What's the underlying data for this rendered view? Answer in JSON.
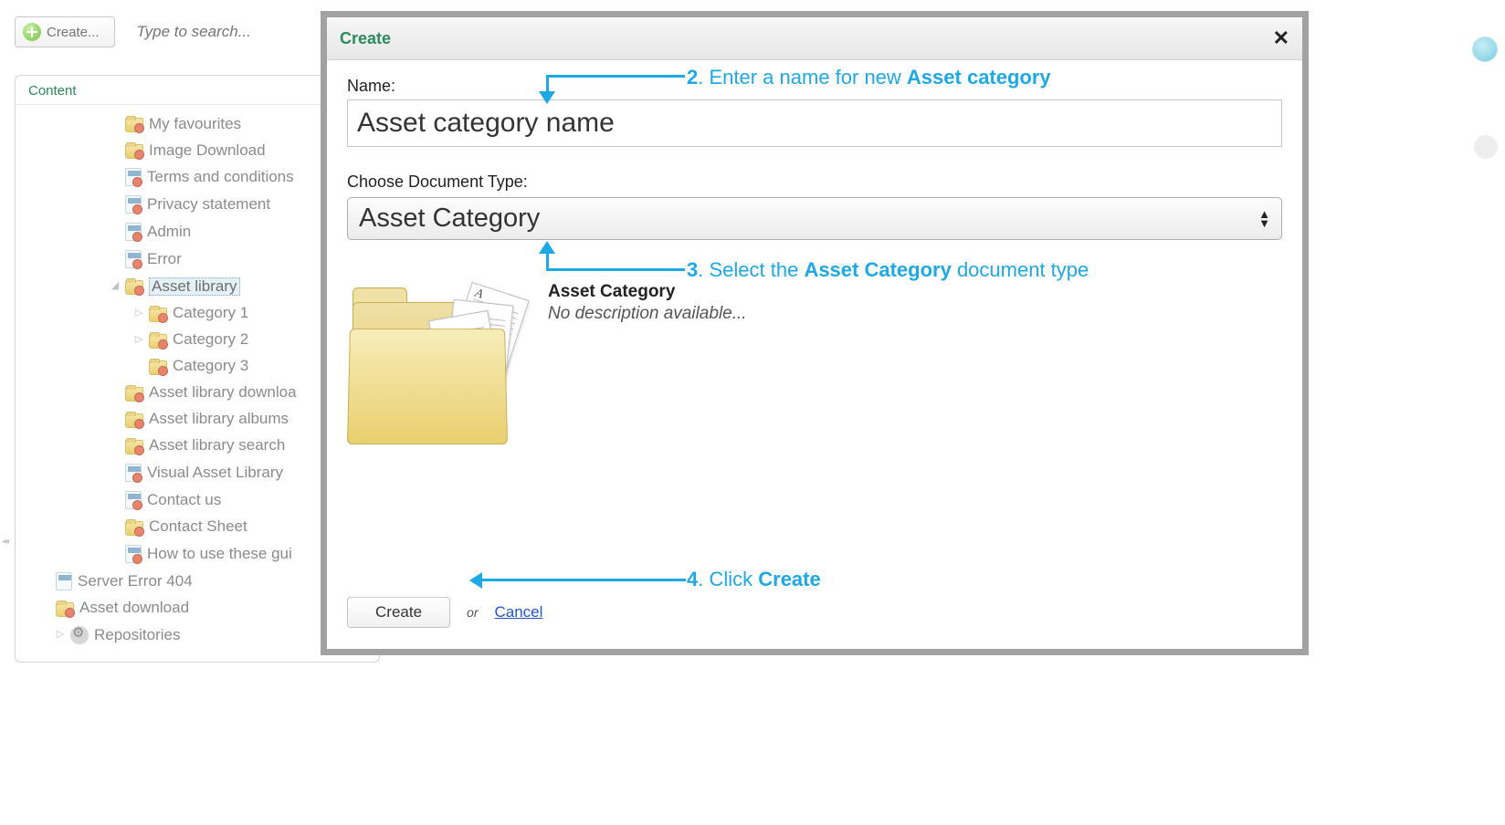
{
  "colors": {
    "accent_green": "#2c8a5d",
    "annotation_blue": "#1ea8e6",
    "link_blue": "#2457c5",
    "modal_border": "#a2a2a2",
    "tree_text": "#8b8b8b"
  },
  "toolbar": {
    "create_label": "Create...",
    "search_placeholder": "Type to search..."
  },
  "sidebar": {
    "tab_label": "Content",
    "items": [
      {
        "label": "My favourites",
        "icon": "folder",
        "depth": 1
      },
      {
        "label": "Image Download",
        "icon": "folder",
        "depth": 1
      },
      {
        "label": "Terms and conditions",
        "icon": "doc",
        "depth": 1
      },
      {
        "label": "Privacy statement",
        "icon": "doc",
        "depth": 1
      },
      {
        "label": "Admin",
        "icon": "doc",
        "depth": 1
      },
      {
        "label": "Error",
        "icon": "doc",
        "depth": 1
      },
      {
        "label": "Asset library",
        "icon": "folder",
        "depth": 1,
        "expander": "◢",
        "selected": true
      },
      {
        "label": "Category 1",
        "icon": "folder",
        "depth": 2,
        "expander": "▷"
      },
      {
        "label": "Category 2",
        "icon": "folder",
        "depth": 2,
        "expander": "▷"
      },
      {
        "label": "Category 3",
        "icon": "folder",
        "depth": 2
      },
      {
        "label": "Asset library downloa",
        "icon": "folder",
        "depth": 1
      },
      {
        "label": "Asset library albums",
        "icon": "folder",
        "depth": 1
      },
      {
        "label": "Asset library search",
        "icon": "folder",
        "depth": 1
      },
      {
        "label": "Visual Asset Library",
        "icon": "doc",
        "depth": 1
      },
      {
        "label": "Contact us",
        "icon": "doc",
        "depth": 1
      },
      {
        "label": "Contact Sheet",
        "icon": "folder",
        "depth": 1
      },
      {
        "label": "How to use these gui",
        "icon": "doc",
        "depth": 1
      },
      {
        "label": "Server Error 404",
        "icon": "doc-noerr",
        "depth": 0
      },
      {
        "label": "Asset download",
        "icon": "folder",
        "depth": 0
      },
      {
        "label": "Repositories",
        "icon": "gear",
        "depth": 0,
        "expander": "▷"
      }
    ]
  },
  "dialog": {
    "title": "Create",
    "name_label": "Name:",
    "name_value": "Asset category name",
    "doctype_label": "Choose Document Type:",
    "doctype_value": "Asset Category",
    "preview_title": "Asset Category",
    "preview_desc": "No description available...",
    "create_label": "Create",
    "or_label": "or",
    "cancel_label": "Cancel"
  },
  "annotations": {
    "step2_prefix": "2",
    "step2_text": ". Enter a name for new ",
    "step2_bold": "Asset category",
    "step3_prefix": "3",
    "step3_text": ". Select the ",
    "step3_bold": "Asset Category",
    "step3_suffix": " document type",
    "step4_prefix": "4",
    "step4_text": ". Click ",
    "step4_bold": "Create"
  }
}
